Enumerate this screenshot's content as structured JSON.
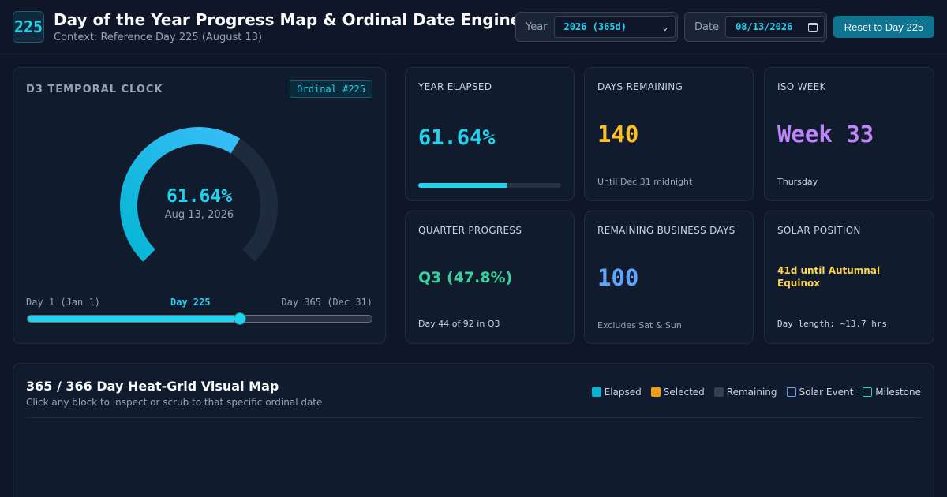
{
  "header": {
    "logo": "225",
    "title": "Day of the Year Progress Map & Ordinal Date Engine",
    "subtitle": "Context: Reference Day 225 (August 13)",
    "year_label": "Year",
    "year_value": "2026 (365d)",
    "date_label": "Date",
    "date_value": "08/13/2026",
    "reset_label": "Reset to Day 225"
  },
  "clock": {
    "title": "D3 TEMPORAL CLOCK",
    "badge": "Ordinal #225",
    "percent": "61.64%",
    "progress": 0.6164,
    "date": "Aug 13, 2026",
    "start_label": "Day 1 (Jan 1)",
    "current_label": "Day 225",
    "end_label": "Day 365 (Dec 31)",
    "day": 225,
    "days_in_year": 365
  },
  "stats": {
    "elapsed": {
      "label": "YEAR ELAPSED",
      "value": "61.64%",
      "progress": 0.6164
    },
    "remaining": {
      "label": "DAYS REMAINING",
      "value": "140",
      "foot": "Until Dec 31 midnight"
    },
    "iso_week": {
      "label": "ISO WEEK",
      "value": "Week 33",
      "foot": "Thursday"
    },
    "quarter": {
      "label": "QUARTER PROGRESS",
      "value": "Q3 (47.8%)",
      "foot": "Day 44 of 92 in Q3"
    },
    "business": {
      "label": "REMAINING BUSINESS DAYS",
      "value": "100",
      "foot": "Excludes Sat & Sun"
    },
    "solar": {
      "label": "SOLAR POSITION",
      "value": "41d until Autumnal Equinox",
      "foot": "Day length: ~13.7 hrs"
    }
  },
  "heatgrid": {
    "title": "365 / 366 Day Heat-Grid Visual Map",
    "subtitle": "Click any block to inspect or scrub to that specific ordinal date",
    "legend": [
      {
        "label": "Elapsed",
        "color": "#06b6d4",
        "style": "fill"
      },
      {
        "label": "Selected",
        "color": "#f59e0b",
        "style": "fill"
      },
      {
        "label": "Remaining",
        "color": "#334155",
        "style": "fill"
      },
      {
        "label": "Solar Event",
        "color": "#60a5fa",
        "style": "outline"
      },
      {
        "label": "Milestone",
        "color": "#34d399",
        "style": "outline"
      }
    ]
  },
  "colors": {
    "accent": "#22d3ee",
    "remaining": "#fbbf24",
    "iso_week": "#c084fc",
    "quarter": "#34d399",
    "business": "#60a5fa",
    "solar": "#fcd34d"
  }
}
